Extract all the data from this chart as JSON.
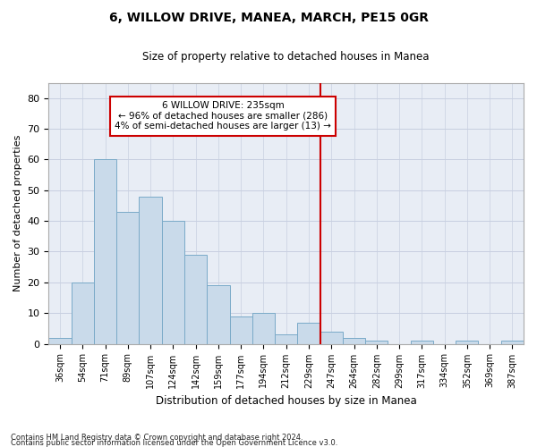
{
  "title": "6, WILLOW DRIVE, MANEA, MARCH, PE15 0GR",
  "subtitle": "Size of property relative to detached houses in Manea",
  "xlabel": "Distribution of detached houses by size in Manea",
  "ylabel": "Number of detached properties",
  "bar_color": "#c9daea",
  "bar_edge_color": "#7aaac8",
  "grid_color": "#c8cfe0",
  "background_color": "#e8edf5",
  "categories": [
    "36sqm",
    "54sqm",
    "71sqm",
    "89sqm",
    "107sqm",
    "124sqm",
    "142sqm",
    "159sqm",
    "177sqm",
    "194sqm",
    "212sqm",
    "229sqm",
    "247sqm",
    "264sqm",
    "282sqm",
    "299sqm",
    "317sqm",
    "334sqm",
    "352sqm",
    "369sqm",
    "387sqm"
  ],
  "values": [
    2,
    20,
    60,
    43,
    48,
    40,
    29,
    19,
    9,
    10,
    3,
    7,
    4,
    2,
    1,
    0,
    1,
    0,
    1,
    0,
    1
  ],
  "vline_x": 11.5,
  "vline_color": "#cc0000",
  "annotation_text": "6 WILLOW DRIVE: 235sqm\n← 96% of detached houses are smaller (286)\n4% of semi-detached houses are larger (13) →",
  "annotation_box_color": "#ffffff",
  "annotation_box_edge_color": "#cc0000",
  "ylim": [
    0,
    85
  ],
  "yticks": [
    0,
    10,
    20,
    30,
    40,
    50,
    60,
    70,
    80
  ],
  "footnote1": "Contains HM Land Registry data © Crown copyright and database right 2024.",
  "footnote2": "Contains public sector information licensed under the Open Government Licence v3.0."
}
